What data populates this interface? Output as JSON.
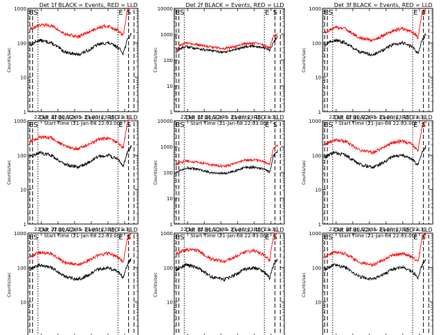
{
  "ylabel": "Counts/sec",
  "xlabel": "Start Time (21-Jan-08 22:03:00)",
  "ytick_labels": [
    "1",
    "10",
    "100",
    "1000",
    "10000"
  ],
  "xtick_labels": [
    "22:15",
    "22:30",
    "22:45",
    "23:00",
    "23:15",
    "23:30"
  ],
  "xtick_times_hours": [
    22.25,
    22.5,
    22.75,
    23.0,
    23.25,
    23.5
  ],
  "marker_labels": {
    "start": "S",
    "end": "E"
  },
  "colors": {
    "events": "#000000",
    "lld": "#ff0000"
  },
  "chart_data": [
    {
      "type": "line",
      "title": "Det 1f BLACK = Events, RED = LLD",
      "x_range_hours": [
        22.05,
        23.7
      ],
      "ylim": [
        1,
        1000
      ],
      "yscale": "log",
      "marker_letters": "ES ES",
      "marker_hours": [
        22.08,
        22.12,
        22.2,
        23.4,
        23.56,
        23.64
      ],
      "series": [
        {
          "name": "Events",
          "anchors_hours": [
            22.08,
            22.14,
            22.22,
            22.4,
            22.6,
            22.8,
            22.95,
            23.1,
            23.25,
            23.4,
            23.48,
            23.54,
            23.6
          ],
          "values": [
            85,
            100,
            120,
            100,
            55,
            45,
            60,
            90,
            100,
            75,
            50,
            120,
            180
          ]
        },
        {
          "name": "LLD",
          "anchors_hours": [
            22.08,
            22.14,
            22.22,
            22.4,
            22.6,
            22.8,
            22.95,
            23.1,
            23.25,
            23.4,
            23.48,
            23.54,
            23.6
          ],
          "values": [
            260,
            280,
            330,
            320,
            180,
            150,
            200,
            280,
            310,
            230,
            160,
            900,
            1100
          ]
        }
      ]
    },
    {
      "type": "line",
      "title": "Det 2f BLACK = Events, RED = LLD",
      "x_range_hours": [
        22.05,
        23.7
      ],
      "ylim": [
        1,
        10000
      ],
      "yscale": "log",
      "marker_letters": "ES ES",
      "marker_hours": [
        22.08,
        22.12,
        22.2,
        23.4,
        23.56,
        23.64
      ],
      "series": [
        {
          "name": "Events",
          "anchors_hours": [
            22.08,
            22.14,
            22.22,
            22.4,
            22.6,
            22.8,
            22.95,
            23.1,
            23.25,
            23.4,
            23.48,
            23.54,
            23.6
          ],
          "values": [
            200,
            280,
            330,
            280,
            230,
            200,
            250,
            330,
            350,
            300,
            230,
            500,
            800
          ]
        },
        {
          "name": "LLD",
          "anchors_hours": [
            22.08,
            22.14,
            22.22,
            22.4,
            22.6,
            22.8,
            22.95,
            23.1,
            23.25,
            23.4,
            23.48,
            23.54,
            23.6
          ],
          "values": [
            260,
            380,
            450,
            390,
            320,
            280,
            330,
            430,
            450,
            380,
            290,
            900,
            1000
          ]
        }
      ]
    },
    {
      "type": "line",
      "title": "Det 3f BLACK = Events, RED = LLD",
      "x_range_hours": [
        22.05,
        23.7
      ],
      "ylim": [
        1,
        1000
      ],
      "yscale": "log",
      "marker_letters": "ES ES",
      "marker_hours": [
        22.08,
        22.12,
        22.2,
        23.4,
        23.56,
        23.64
      ],
      "series": [
        {
          "name": "Events",
          "anchors_hours": [
            22.08,
            22.14,
            22.22,
            22.4,
            22.6,
            22.8,
            22.95,
            23.1,
            23.25,
            23.4,
            23.48,
            23.54,
            23.6
          ],
          "values": [
            85,
            100,
            120,
            100,
            55,
            45,
            60,
            90,
            100,
            75,
            50,
            120,
            180
          ]
        },
        {
          "name": "LLD",
          "anchors_hours": [
            22.08,
            22.14,
            22.22,
            22.4,
            22.6,
            22.8,
            22.95,
            23.1,
            23.25,
            23.4,
            23.48,
            23.54,
            23.6
          ],
          "values": [
            200,
            230,
            280,
            250,
            140,
            120,
            160,
            230,
            260,
            200,
            140,
            700,
            1000
          ]
        }
      ]
    },
    {
      "type": "line",
      "title": "Det 4f BLACK = Events, RED = LLD",
      "x_range_hours": [
        22.05,
        23.7
      ],
      "ylim": [
        1,
        1000
      ],
      "yscale": "log",
      "marker_letters": "ES ES",
      "marker_hours": [
        22.08,
        22.12,
        22.2,
        23.4,
        23.56,
        23.64
      ],
      "series": [
        {
          "name": "Events",
          "anchors_hours": [
            22.08,
            22.14,
            22.22,
            22.4,
            22.6,
            22.8,
            22.95,
            23.1,
            23.25,
            23.4,
            23.48,
            23.54,
            23.6
          ],
          "values": [
            85,
            100,
            120,
            100,
            55,
            45,
            60,
            90,
            100,
            75,
            50,
            120,
            180
          ]
        },
        {
          "name": "LLD",
          "anchors_hours": [
            22.08,
            22.14,
            22.22,
            22.4,
            22.6,
            22.8,
            22.95,
            23.1,
            23.25,
            23.4,
            23.48,
            23.54,
            23.6
          ],
          "values": [
            260,
            280,
            330,
            320,
            180,
            150,
            200,
            280,
            310,
            230,
            160,
            900,
            1100
          ]
        }
      ]
    },
    {
      "type": "line",
      "title": "Det 5f BLACK = Events, RED = LLD",
      "x_range_hours": [
        22.05,
        23.7
      ],
      "ylim": [
        1,
        10000
      ],
      "yscale": "log",
      "marker_letters": "ES ES",
      "marker_hours": [
        22.08,
        22.12,
        22.2,
        23.4,
        23.56,
        23.64
      ],
      "series": [
        {
          "name": "Events",
          "anchors_hours": [
            22.08,
            22.14,
            22.22,
            22.4,
            22.6,
            22.8,
            22.95,
            23.1,
            23.25,
            23.4,
            23.48,
            23.54,
            23.6
          ],
          "values": [
            100,
            120,
            150,
            130,
            100,
            90,
            110,
            150,
            160,
            130,
            100,
            450,
            700
          ]
        },
        {
          "name": "LLD",
          "anchors_hours": [
            22.08,
            22.14,
            22.22,
            22.4,
            22.6,
            22.8,
            22.95,
            23.1,
            23.25,
            23.4,
            23.48,
            23.54,
            23.6
          ],
          "values": [
            200,
            240,
            280,
            250,
            200,
            170,
            220,
            290,
            310,
            260,
            200,
            900,
            1100
          ]
        }
      ]
    },
    {
      "type": "line",
      "title": "Det 6f BLACK = Events, RED = LLD",
      "x_range_hours": [
        22.05,
        23.7
      ],
      "ylim": [
        1,
        1000
      ],
      "yscale": "log",
      "marker_letters": "ES ES",
      "marker_hours": [
        22.08,
        22.12,
        22.2,
        23.4,
        23.56,
        23.64
      ],
      "series": [
        {
          "name": "Events",
          "anchors_hours": [
            22.08,
            22.14,
            22.22,
            22.4,
            22.6,
            22.8,
            22.95,
            23.1,
            23.25,
            23.4,
            23.48,
            23.54,
            23.6
          ],
          "values": [
            85,
            100,
            120,
            100,
            55,
            45,
            60,
            90,
            100,
            75,
            50,
            120,
            180
          ]
        },
        {
          "name": "LLD",
          "anchors_hours": [
            22.08,
            22.14,
            22.22,
            22.4,
            22.6,
            22.8,
            22.95,
            23.1,
            23.25,
            23.4,
            23.48,
            23.54,
            23.6
          ],
          "values": [
            200,
            230,
            280,
            250,
            140,
            120,
            160,
            230,
            260,
            200,
            140,
            700,
            1000
          ]
        }
      ]
    },
    {
      "type": "line",
      "title": "Det 7f BLACK = Events, RED = LLD",
      "x_range_hours": [
        22.05,
        23.7
      ],
      "ylim": [
        1,
        1000
      ],
      "yscale": "log",
      "marker_letters": "ES ES",
      "marker_hours": [
        22.08,
        22.12,
        22.2,
        23.4,
        23.56,
        23.64
      ],
      "series": [
        {
          "name": "Events",
          "anchors_hours": [
            22.08,
            22.14,
            22.22,
            22.4,
            22.6,
            22.8,
            22.95,
            23.1,
            23.25,
            23.4,
            23.48,
            23.54,
            23.6
          ],
          "values": [
            85,
            100,
            120,
            100,
            55,
            45,
            60,
            90,
            100,
            75,
            50,
            120,
            180
          ]
        },
        {
          "name": "LLD",
          "anchors_hours": [
            22.08,
            22.14,
            22.22,
            22.4,
            22.6,
            22.8,
            22.95,
            23.1,
            23.25,
            23.4,
            23.48,
            23.54,
            23.6
          ],
          "values": [
            200,
            230,
            280,
            250,
            140,
            120,
            160,
            230,
            260,
            200,
            140,
            700,
            1000
          ]
        }
      ]
    },
    {
      "type": "line",
      "title": "Det 8f BLACK = Events, RED = LLD",
      "x_range_hours": [
        22.05,
        23.7
      ],
      "ylim": [
        1,
        1000
      ],
      "yscale": "log",
      "marker_letters": "ES ES",
      "marker_hours": [
        22.08,
        22.12,
        22.2,
        23.4,
        23.56,
        23.64
      ],
      "series": [
        {
          "name": "Events",
          "anchors_hours": [
            22.08,
            22.14,
            22.22,
            22.4,
            22.6,
            22.8,
            22.95,
            23.1,
            23.25,
            23.4,
            23.48,
            23.54,
            23.6
          ],
          "values": [
            85,
            100,
            120,
            100,
            55,
            45,
            60,
            90,
            100,
            75,
            50,
            120,
            180
          ]
        },
        {
          "name": "LLD",
          "anchors_hours": [
            22.08,
            22.14,
            22.22,
            22.4,
            22.6,
            22.8,
            22.95,
            23.1,
            23.25,
            23.4,
            23.48,
            23.54,
            23.6
          ],
          "values": [
            260,
            280,
            330,
            320,
            180,
            150,
            200,
            280,
            310,
            230,
            160,
            900,
            1100
          ]
        }
      ]
    },
    {
      "type": "line",
      "title": "Det 9f BLACK = Events, RED = LLD",
      "x_range_hours": [
        22.05,
        23.7
      ],
      "ylim": [
        1,
        1000
      ],
      "yscale": "log",
      "marker_letters": "ES ES",
      "marker_hours": [
        22.08,
        22.12,
        22.2,
        23.4,
        23.56,
        23.64
      ],
      "series": [
        {
          "name": "Events",
          "anchors_hours": [
            22.08,
            22.14,
            22.22,
            22.4,
            22.6,
            22.8,
            22.95,
            23.1,
            23.25,
            23.4,
            23.48,
            23.54,
            23.6
          ],
          "values": [
            85,
            100,
            120,
            100,
            55,
            45,
            60,
            90,
            100,
            75,
            50,
            120,
            180
          ]
        },
        {
          "name": "LLD",
          "anchors_hours": [
            22.08,
            22.14,
            22.22,
            22.4,
            22.6,
            22.8,
            22.95,
            23.1,
            23.25,
            23.4,
            23.48,
            23.54,
            23.6
          ],
          "values": [
            200,
            230,
            280,
            250,
            140,
            120,
            160,
            230,
            260,
            200,
            140,
            700,
            1000
          ]
        }
      ]
    }
  ]
}
